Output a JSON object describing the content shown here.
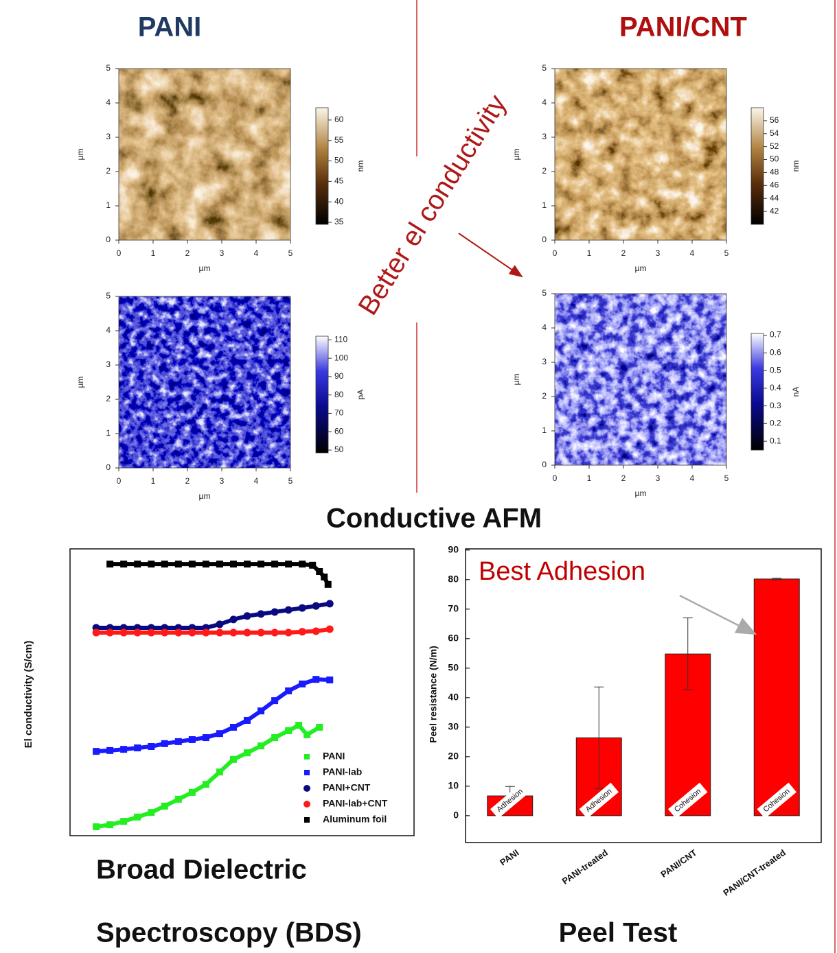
{
  "header": {
    "left": "PANI",
    "right": "PANI/CNT",
    "arrow_label": "Better el conductivity",
    "section": "Conductive AFM"
  },
  "chart_data": [
    {
      "type": "image",
      "xlim": [
        0,
        5
      ],
      "ylim": [
        0,
        5
      ],
      "xticks": [
        0,
        1,
        2,
        3,
        4,
        5
      ],
      "yticks": [
        0,
        1,
        2,
        3,
        4,
        5
      ],
      "xlabel": "µm",
      "ylabel": "µm",
      "colorbar": {
        "label": "nm",
        "colormap": "copper",
        "clim": [
          34.5,
          63
        ],
        "ticks": [
          35,
          40,
          45,
          50,
          55,
          60
        ]
      }
    },
    {
      "type": "image",
      "xlim": [
        0,
        5
      ],
      "ylim": [
        0,
        5
      ],
      "xticks": [
        0,
        1,
        2,
        3,
        4,
        5
      ],
      "yticks": [
        0,
        1,
        2,
        3,
        4,
        5
      ],
      "xlabel": "µm",
      "ylabel": "µm",
      "colorbar": {
        "label": "pA",
        "colormap": "blue",
        "clim": [
          48.5,
          112
        ],
        "ticks": [
          50,
          60,
          70,
          80,
          90,
          100,
          110
        ]
      }
    },
    {
      "type": "image",
      "xlim": [
        0,
        5
      ],
      "ylim": [
        0,
        5
      ],
      "xticks": [
        0,
        1,
        2,
        3,
        4,
        5
      ],
      "yticks": [
        0,
        1,
        2,
        3,
        4,
        5
      ],
      "xlabel": "µm",
      "ylabel": "µm",
      "colorbar": {
        "label": "nm",
        "colormap": "copper",
        "clim": [
          40,
          58
        ],
        "ticks": [
          42,
          44,
          46,
          48,
          50,
          52,
          54,
          56
        ]
      }
    },
    {
      "type": "image",
      "xlim": [
        0,
        5
      ],
      "ylim": [
        0,
        5
      ],
      "xticks": [
        0,
        1,
        2,
        3,
        4,
        5
      ],
      "yticks": [
        0,
        1,
        2,
        3,
        4,
        5
      ],
      "xlabel": "µm",
      "ylabel": "µm",
      "colorbar": {
        "label": "nA",
        "colormap": "blue",
        "clim": [
          0.05,
          0.71
        ],
        "ticks": [
          0.1,
          0.2,
          0.3,
          0.4,
          0.5,
          0.6,
          0.7
        ]
      }
    },
    {
      "type": "scatter",
      "title": [
        "Broad Dielectric",
        "Spectroscopy (BDS)"
      ],
      "ylabel": "El conductivity (S/cm)",
      "xlim": [
        0,
        100
      ],
      "ylim": [
        0,
        100
      ],
      "legend": "lower right",
      "series": [
        {
          "name": "PANI",
          "color": "#22ee22",
          "marker": "square",
          "x": [
            7.6,
            11.6,
            15.6,
            19.6,
            23.6,
            27.5,
            31.5,
            35.5,
            39.5,
            43.5,
            47.5,
            51.5,
            55.5,
            59.5,
            63.5,
            66.5,
            68.9,
            72.5
          ],
          "values": [
            3.1,
            3.8,
            5.0,
            6.5,
            8.1,
            10.3,
            12.7,
            15.1,
            17.9,
            22.2,
            26.6,
            28.9,
            31.3,
            34.2,
            36.6,
            38.5,
            35.2,
            37.8
          ]
        },
        {
          "name": "PANI-lab",
          "color": "#1a1aff",
          "marker": "square",
          "x": [
            7.6,
            11.6,
            15.6,
            19.6,
            23.6,
            27.5,
            31.5,
            35.5,
            39.5,
            43.5,
            47.5,
            51.5,
            55.5,
            59.5,
            63.5,
            67.5,
            71.5,
            75.5
          ],
          "values": [
            29.4,
            29.7,
            30.1,
            30.6,
            31.1,
            32.1,
            32.8,
            33.5,
            34.2,
            35.6,
            37.8,
            40.2,
            43.5,
            47.1,
            50.5,
            52.9,
            54.5,
            54.3
          ]
        },
        {
          "name": "PANI+CNT",
          "color": "#0a0a80",
          "marker": "circle",
          "x": [
            7.6,
            11.6,
            15.6,
            19.6,
            23.6,
            27.5,
            31.5,
            35.5,
            39.5,
            43.5,
            47.5,
            51.5,
            55.5,
            59.5,
            63.5,
            67.5,
            71.5,
            75.5
          ],
          "values": [
            72.5,
            72.5,
            72.5,
            72.5,
            72.5,
            72.5,
            72.5,
            72.5,
            72.5,
            73.7,
            75.4,
            76.6,
            77.3,
            78.0,
            78.7,
            79.4,
            80.1,
            80.9
          ]
        },
        {
          "name": "PANI-lab+CNT",
          "color": "#ff1a1a",
          "marker": "circle",
          "x": [
            7.6,
            11.6,
            15.6,
            19.6,
            23.6,
            27.5,
            31.5,
            35.5,
            39.5,
            43.5,
            47.5,
            51.5,
            55.5,
            59.5,
            63.5,
            67.5,
            71.5,
            75.5
          ],
          "values": [
            70.8,
            70.8,
            70.8,
            70.8,
            70.8,
            70.8,
            70.8,
            70.8,
            70.8,
            70.8,
            70.8,
            70.8,
            70.8,
            70.8,
            70.8,
            71.1,
            71.3,
            72.0
          ]
        },
        {
          "name": "Aluminum foil",
          "color": "#000000",
          "marker": "square",
          "x": [
            11.6,
            15.6,
            19.6,
            23.6,
            27.5,
            31.5,
            35.5,
            39.5,
            43.5,
            47.5,
            51.5,
            55.5,
            59.5,
            63.5,
            67.5,
            70.5,
            72.5,
            73.9,
            75.0
          ],
          "values": [
            94.7,
            94.7,
            94.7,
            94.7,
            94.7,
            94.7,
            94.7,
            94.7,
            94.7,
            94.7,
            94.7,
            94.7,
            94.7,
            94.7,
            94.7,
            94.3,
            92.1,
            90.2,
            87.6
          ]
        }
      ]
    },
    {
      "type": "bar",
      "title": "Peel Test",
      "ylabel": "Peel resistance (N/m)",
      "annotation": "Best Adhesion",
      "categories": [
        "PANI",
        "PANI-treated",
        "PANI/CNT",
        "PANI/CNT-treated"
      ],
      "values": [
        6.7,
        26.4,
        54.8,
        80.2
      ],
      "errors": [
        3.2,
        17.2,
        12.2,
        0.3
      ],
      "bar_labels": [
        "Adhesion",
        "Adhesion",
        "Cohesion",
        "Cohesion"
      ],
      "color": "#ff0000",
      "ylim": [
        -9.1,
        90.4
      ],
      "yticks": [
        0,
        10,
        20,
        30,
        40,
        50,
        60,
        70,
        80,
        90
      ]
    }
  ]
}
